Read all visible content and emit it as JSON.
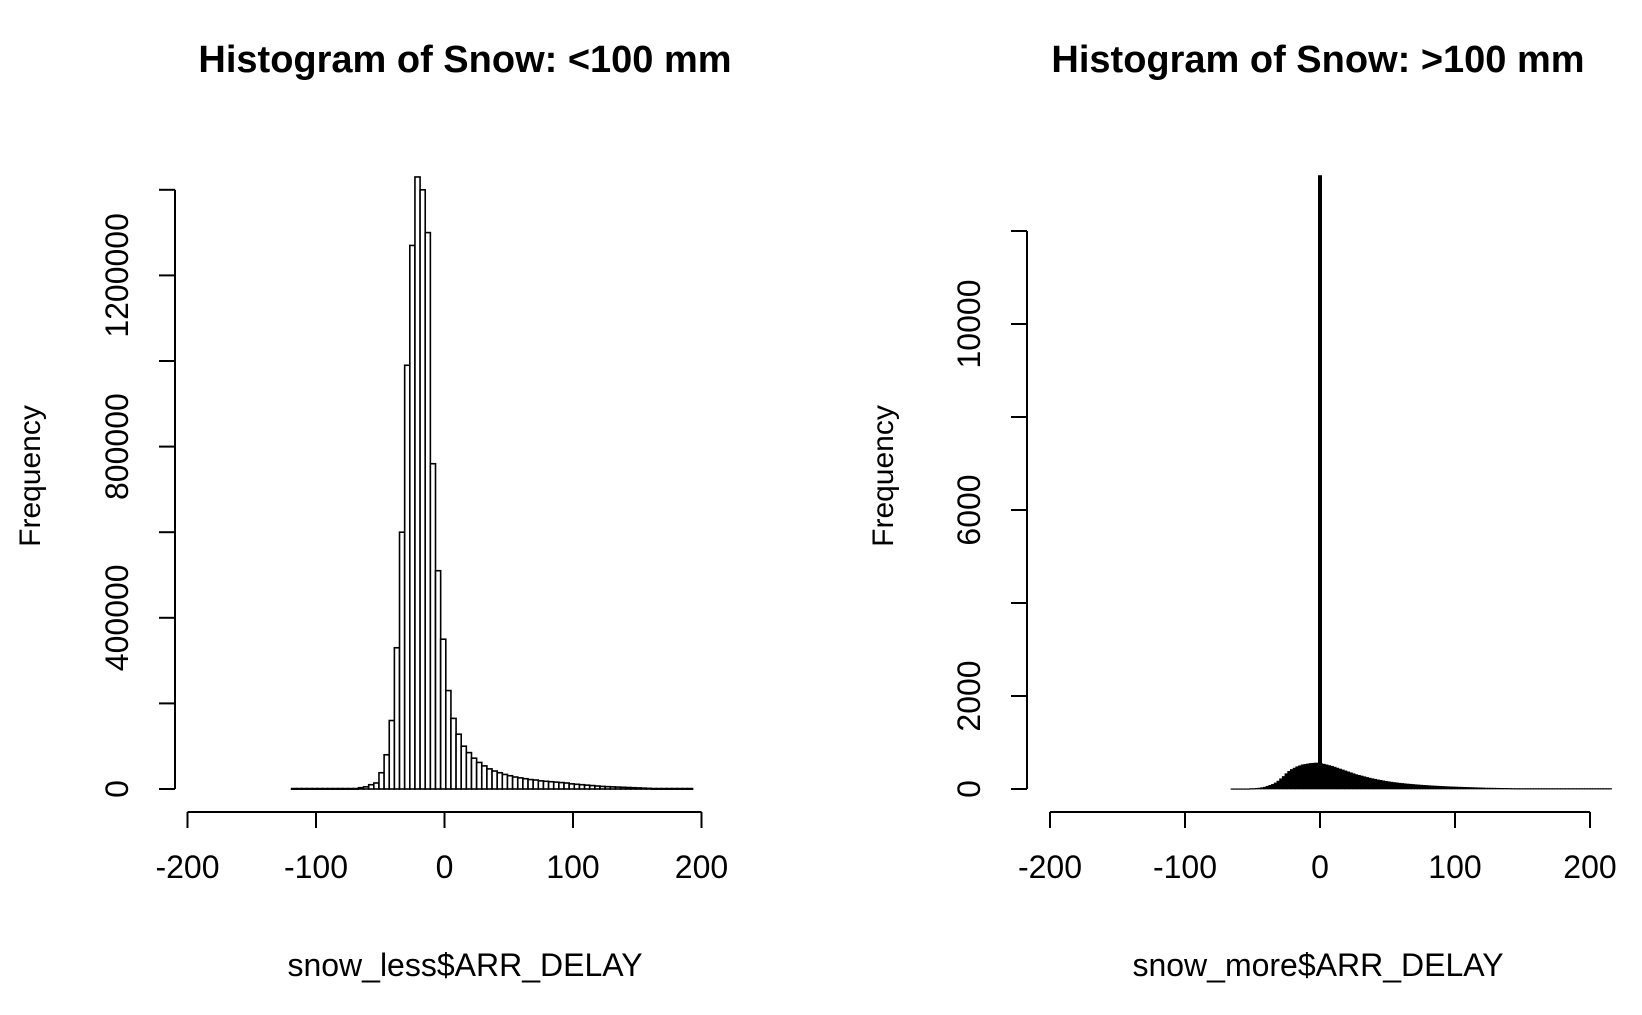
{
  "chart_data": [
    {
      "type": "bar",
      "title": "Histogram of Snow: <100 mm",
      "xlabel": "snow_less$ARR_DELAY",
      "ylabel": "Frequency",
      "xlim": [
        -200,
        210
      ],
      "ylim": [
        0,
        1400000
      ],
      "x_ticks": [
        "-200",
        "-100",
        "0",
        "100",
        "200"
      ],
      "y_ticks": [
        "0",
        "400000",
        "800000",
        "1200000"
      ],
      "bin_start": -119,
      "bin_width": 4,
      "values": [
        1000,
        1000,
        1000,
        1000,
        1000,
        1000,
        1000,
        1000,
        1000,
        1000,
        1000,
        1000,
        1000,
        3000,
        5000,
        10000,
        14000,
        38000,
        80000,
        160000,
        330000,
        600000,
        990000,
        1270000,
        1430000,
        1400000,
        1300000,
        760000,
        510000,
        350000,
        230000,
        165000,
        128000,
        100000,
        85000,
        72000,
        62000,
        54000,
        47000,
        42000,
        38000,
        34000,
        31000,
        28000,
        26000,
        24000,
        22000,
        21000,
        19000,
        18000,
        17000,
        16000,
        15000,
        14000,
        12000,
        11000,
        10000,
        9000,
        8000,
        7000,
        6000,
        5500,
        5000,
        4500,
        4000,
        3500,
        3000,
        2500,
        2000,
        1500,
        1000,
        1000,
        1000,
        1000,
        1000,
        1000,
        1000,
        1000
      ]
    },
    {
      "type": "bar",
      "title": "Histogram of Snow: >100 mm",
      "xlabel": "snow_more$ARR_DELAY",
      "ylabel": "Frequency",
      "xlim": [
        -200,
        210
      ],
      "ylim": [
        0,
        12500
      ],
      "x_ticks": [
        "-200",
        "-100",
        "0",
        "100",
        "200"
      ],
      "y_ticks": [
        "0",
        "2000",
        "6000",
        "10000"
      ],
      "bin_start": -66,
      "bin_width": 2,
      "spike_x": 0,
      "spike_value": 13200,
      "values": [
        5,
        5,
        5,
        5,
        5,
        5,
        5,
        10,
        10,
        15,
        20,
        30,
        40,
        60,
        80,
        100,
        130,
        170,
        220,
        270,
        330,
        380,
        420,
        450,
        480,
        500,
        520,
        530,
        540,
        550,
        555,
        560,
        555,
        545,
        535,
        520,
        505,
        490,
        470,
        450,
        430,
        410,
        390,
        370,
        350,
        330,
        310,
        295,
        280,
        265,
        250,
        235,
        222,
        210,
        198,
        187,
        176,
        166,
        157,
        148,
        140,
        133,
        126,
        120,
        114,
        108,
        103,
        98,
        93,
        88,
        84,
        80,
        76,
        72,
        68,
        65,
        62,
        59,
        56,
        53,
        50,
        47,
        45,
        43,
        41,
        39,
        37,
        35,
        33,
        31,
        29,
        27,
        25,
        23,
        21,
        20,
        19,
        18,
        17,
        16,
        15,
        14,
        13,
        12,
        11,
        10,
        10,
        10,
        10,
        10,
        10,
        10,
        10,
        10,
        10,
        10,
        10,
        10,
        10,
        10,
        10,
        10,
        10,
        10,
        10,
        10,
        10,
        10,
        10,
        10,
        10,
        10,
        10,
        10,
        10,
        10,
        10,
        10,
        10,
        10,
        10
      ]
    }
  ]
}
